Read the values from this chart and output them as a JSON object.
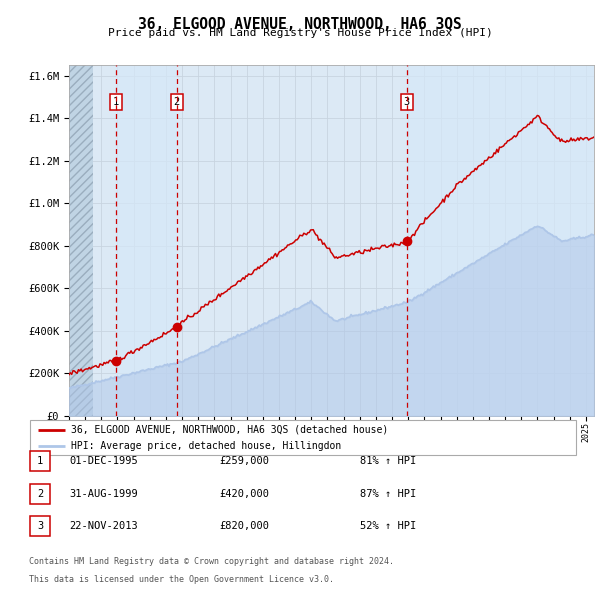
{
  "title": "36, ELGOOD AVENUE, NORTHWOOD, HA6 3QS",
  "subtitle": "Price paid vs. HM Land Registry's House Price Index (HPI)",
  "legend_line1": "36, ELGOOD AVENUE, NORTHWOOD, HA6 3QS (detached house)",
  "legend_line2": "HPI: Average price, detached house, Hillingdon",
  "footer1": "Contains HM Land Registry data © Crown copyright and database right 2024.",
  "footer2": "This data is licensed under the Open Government Licence v3.0.",
  "transactions": [
    {
      "num": 1,
      "date": "01-DEC-1995",
      "price": 259000,
      "pct": "81%",
      "dir": "↑"
    },
    {
      "num": 2,
      "date": "31-AUG-1999",
      "price": 420000,
      "pct": "87%",
      "dir": "↑"
    },
    {
      "num": 3,
      "date": "22-NOV-2013",
      "price": 820000,
      "pct": "52%",
      "dir": "↑"
    }
  ],
  "sale_dates_decimal": [
    1995.917,
    1999.667,
    2013.896
  ],
  "sale_prices": [
    259000,
    420000,
    820000
  ],
  "hpi_color": "#aec6e8",
  "price_color": "#cc0000",
  "marker_color": "#cc0000",
  "vline_color": "#cc0000",
  "grid_color": "#c8d4e0",
  "bg_color": "#dce9f5",
  "ylim": [
    0,
    1650000
  ],
  "yticks": [
    0,
    200000,
    400000,
    600000,
    800000,
    1000000,
    1200000,
    1400000,
    1600000
  ],
  "xlim_start": 1993.0,
  "xlim_end": 2025.5
}
